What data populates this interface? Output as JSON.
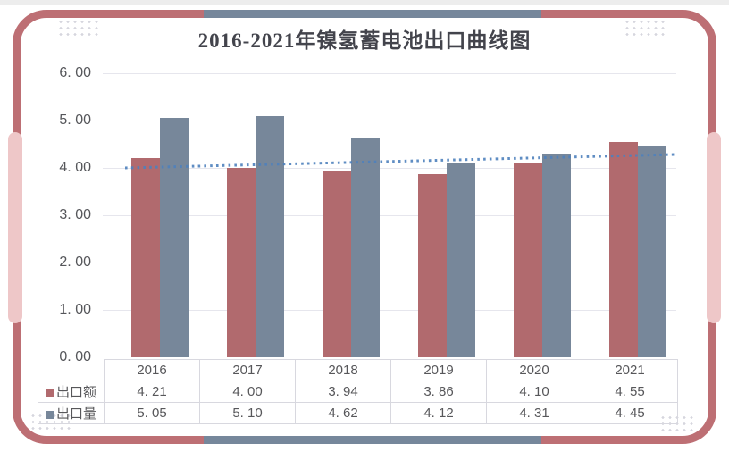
{
  "page": {
    "title": "2016-2021年镍氢蓄电池出口曲线图"
  },
  "chart_data": {
    "type": "bar",
    "title": "2016-2021年镍氢蓄电池出口曲线图",
    "categories": [
      "2016",
      "2017",
      "2018",
      "2019",
      "2020",
      "2021"
    ],
    "series": [
      {
        "name": "出口额",
        "color": "#b16a6e",
        "values": [
          4.21,
          4.0,
          3.94,
          3.86,
          4.1,
          4.55
        ],
        "display": [
          "4. 21",
          "4. 00",
          "3. 94",
          "3. 86",
          "4. 10",
          "4. 55"
        ]
      },
      {
        "name": "出口量",
        "color": "#77879a",
        "values": [
          5.05,
          5.1,
          4.62,
          4.12,
          4.31,
          4.45
        ],
        "display": [
          "5. 05",
          "5. 10",
          "4. 62",
          "4. 12",
          "4. 31",
          "4. 45"
        ]
      }
    ],
    "trendline": {
      "series": "出口额",
      "start_value": 4.0,
      "end_value": 4.28,
      "color": "#4e81bd",
      "style": "dotted"
    },
    "y_ticks": [
      "6. 00",
      "5. 00",
      "4. 00",
      "3. 00",
      "2. 00",
      "1. 00",
      "0. 00"
    ],
    "ylim": [
      0,
      6
    ],
    "grid": true,
    "legend_position": "table-left-column",
    "colors": {
      "card_border": "#bd6f74",
      "border_accent_segment": "#76879b",
      "side_tab": "#eec7c8",
      "gridline": "#e6e6ed",
      "table_border": "#d8d8df",
      "text": "#57575a",
      "title_text": "#43444c"
    }
  }
}
